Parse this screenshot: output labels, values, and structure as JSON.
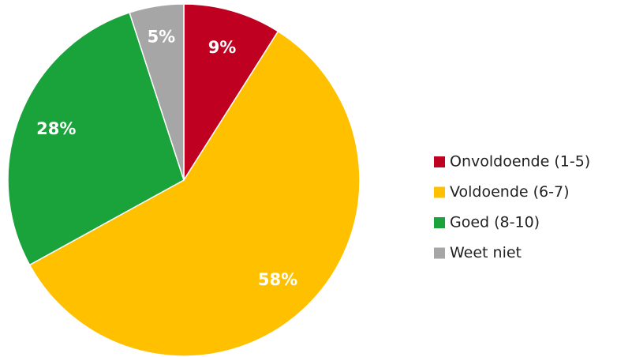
{
  "chart_data": {
    "type": "pie",
    "categories": [
      "Onvoldoende (1-5)",
      "Voldoende (6-7)",
      "Goed (8-10)",
      "Weet niet"
    ],
    "values": [
      9,
      58,
      28,
      5
    ],
    "value_labels": [
      "9%",
      "58%",
      "28%",
      "5%"
    ],
    "colors": [
      "#c00020",
      "#ffc000",
      "#1aa33a",
      "#a6a6a6"
    ],
    "legend": "right"
  }
}
